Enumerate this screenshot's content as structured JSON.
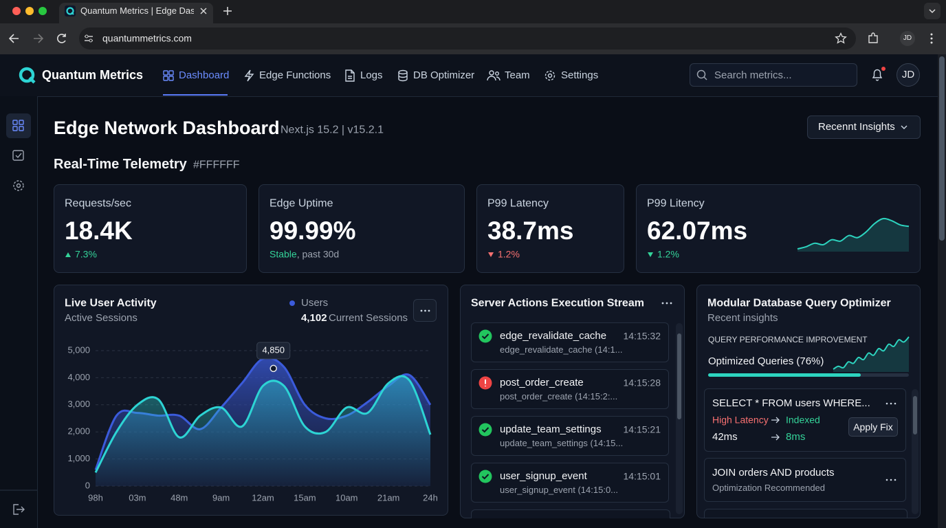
{
  "browser": {
    "tab_title": "Quantum Metrics | Edge Dash",
    "url": "quantummetrics.com",
    "profile": "JD"
  },
  "nav": {
    "brand": "Quantum Metrics",
    "items": [
      "Dashboard",
      "Edge Functions",
      "Logs",
      "DB Optimizer",
      "Team",
      "Settings"
    ],
    "search_placeholder": "Search metrics...",
    "avatar": "JD"
  },
  "header": {
    "title": "Edge Network Dashboard",
    "subtitle": "Next.js 15.2 | v15.2.1",
    "dropdown": "Recennt Insights"
  },
  "section": {
    "title": "Real-Time Telemetry",
    "tag": "#FFFFFF"
  },
  "kpis": [
    {
      "label": "Requests/sec",
      "value": "18.4K",
      "delta": "7.3%",
      "trend": "up",
      "color": "#34d399"
    },
    {
      "label": "Edge Uptime",
      "value": "99.99%",
      "status": "Stable",
      "note": ", past 30d",
      "color": "#34d399"
    },
    {
      "label": "P99 Latency",
      "value": "38.7ms",
      "delta": "1.2%",
      "trend": "down",
      "color": "#f87171"
    },
    {
      "label": "P99 Litency",
      "value": "62.07ms",
      "delta": "1.2%",
      "trend": "down",
      "color": "#34d399",
      "sparkline": [
        1,
        1.3,
        1.8,
        1.6,
        2.3,
        2.1,
        2.9,
        2.6,
        3.4,
        4.6,
        5.3,
        5.0,
        4.4,
        4.2
      ]
    }
  ],
  "chart_data": {
    "type": "line",
    "title": "Live User Activity",
    "subtitle": "Active Sessions",
    "legend_stat": "4,102",
    "legend_stat_label": "Current Sessions",
    "categories": [
      "98h",
      null,
      "03m",
      null,
      "48m",
      null,
      "9am",
      null,
      "12am",
      null,
      "15am",
      null,
      "10am",
      null,
      "21am",
      null,
      "24h"
    ],
    "series": [
      {
        "name": "Users",
        "color": "#3b5bdb",
        "values": [
          600,
          2600,
          2700,
          2600,
          2600,
          2100,
          2900,
          3800,
          4700,
          4400,
          3000,
          2500,
          2600,
          3100,
          3700,
          4100,
          3000
        ]
      },
      {
        "color": "#2dd4d4",
        "values": [
          500,
          2000,
          3000,
          3200,
          1800,
          2600,
          2900,
          2200,
          3700,
          3700,
          2200,
          2000,
          2900,
          2700,
          3800,
          3900,
          1900
        ]
      }
    ],
    "ylim": [
      0,
      5000
    ],
    "yticks": [
      0,
      {
        "value": 1000,
        "label": "1,000"
      },
      {
        "value": 2000,
        "label": "2,000"
      },
      {
        "value": 3000,
        "label": "3,000"
      },
      {
        "value": 4000,
        "label": "4,000"
      },
      {
        "value": 5000,
        "label": "5,000"
      }
    ],
    "grid": true,
    "annotation": {
      "value": 4850,
      "label": "4,850"
    }
  },
  "server_actions": {
    "title": "Server Actions Execution Stream",
    "items": [
      {
        "name": "edge_revalidate_cache",
        "detail": "edge_revalidate_cache (14:1...",
        "time": "14:15:32",
        "status": "ok"
      },
      {
        "name": "post_order_create",
        "detail": "post_order_create (14:15:2:...",
        "time": "14:15:28",
        "status": "error"
      },
      {
        "name": "update_team_settings",
        "detail": "update_team_settings (14:15...",
        "time": "14:15:21",
        "status": "ok"
      },
      {
        "name": "user_signup_event",
        "detail": "user_signup_event (14:15:0...",
        "time": "14:15:01",
        "status": "ok"
      }
    ]
  },
  "optimizer": {
    "title": "Modular Database Query Optimizer",
    "subtitle": "Recent insights",
    "metric_label": "QUERY PERFORMANCE IMPROVEMENT",
    "progress_label": "Optimized Queries (76%)",
    "progress": 76,
    "sparkline": [
      1,
      1.4,
      1.2,
      2,
      1.8,
      2.6,
      2.3,
      3.2,
      2.9,
      3.8,
      3.5,
      4.4,
      4.1,
      5,
      4.7,
      5.4
    ],
    "queries": [
      {
        "query": "SELECT * FROM users WHERE...",
        "before": "High Latency",
        "after": "Indexed",
        "before_time": "42ms",
        "after_time": "8ms",
        "action": "Apply Fix"
      },
      {
        "query": "JOIN orders AND products",
        "note": "Optimization Recommended"
      }
    ]
  }
}
